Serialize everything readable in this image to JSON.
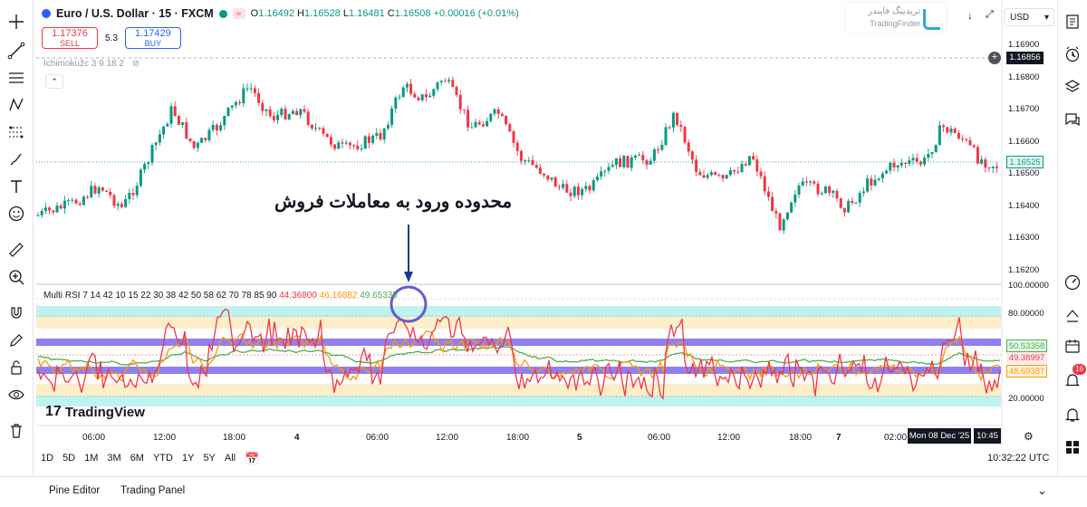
{
  "symbol": {
    "title": "Euro / U.S. Dollar · 15 · FXCM",
    "open_label": "O",
    "open": "1.16492",
    "high_label": "H",
    "high": "1.16528",
    "low_label": "L",
    "low": "1.16481",
    "close_label": "C",
    "close": "1.16508",
    "change": "+0.00016 (+0.01%)"
  },
  "trade": {
    "sell_price": "1.17376",
    "sell_label": "SELL",
    "spread": "5.3",
    "buy_price": "1.17429",
    "buy_label": "BUY"
  },
  "indicators": {
    "ichimoku": "Ichimokužc 3 9 18 2",
    "multi_rsi_label": "Multi RSI 7 14 42 10 15 22 30 38 42 50 58 62 70 78 85 90",
    "rsi_v1": "44.36800",
    "rsi_v2": "46.16882",
    "rsi_v3": "49.65335"
  },
  "currency": "USD",
  "logo": {
    "line1": "تریدینگ فایندر",
    "line2": "TradingFinder"
  },
  "annotation": "محدوده ورود به معاملات فروش",
  "watermark": "TradingView",
  "price_axis": [
    "1.16900",
    "1.16800",
    "1.16700",
    "1.16600",
    "1.16500",
    "1.16400",
    "1.16300",
    "1.16200"
  ],
  "crosshair_price": "1.16856",
  "last_price": "1.16525",
  "rsi_axis": [
    "100.00000",
    "80.00000",
    "20.00000"
  ],
  "rsi_badges": {
    "green": "50.53358",
    "red": "49.38997",
    "orange": "48.69387"
  },
  "time_axis": [
    {
      "label": "06:00"
    },
    {
      "label": "12:00"
    },
    {
      "label": "18:00"
    },
    {
      "label": "4"
    },
    {
      "label": "06:00"
    },
    {
      "label": "12:00"
    },
    {
      "label": "18:00"
    },
    {
      "label": "5"
    },
    {
      "label": "06:00"
    },
    {
      "label": "12:00"
    },
    {
      "label": "18:00"
    },
    {
      "label": "7"
    },
    {
      "label": "02:00"
    }
  ],
  "cursor_date": "Mon 08 Dec '25",
  "cursor_time": "10:45",
  "timeframes": [
    "1D",
    "5D",
    "1M",
    "3M",
    "6M",
    "YTD",
    "1Y",
    "5Y",
    "All"
  ],
  "clock": "10:32:22 UTC",
  "bottom_tabs": {
    "pine": "Pine Editor",
    "panel": "Trading Panel"
  },
  "notif_count": "16",
  "colors": {
    "up": "#089981",
    "down": "#f23645",
    "accent": "#2962ff",
    "rsi_orange": "#ff9800",
    "rsi_green": "#4caf50",
    "band_purple": "#7b68ee",
    "band_cyan": "#bff3f0",
    "band_yellow": "#fdeeca"
  }
}
